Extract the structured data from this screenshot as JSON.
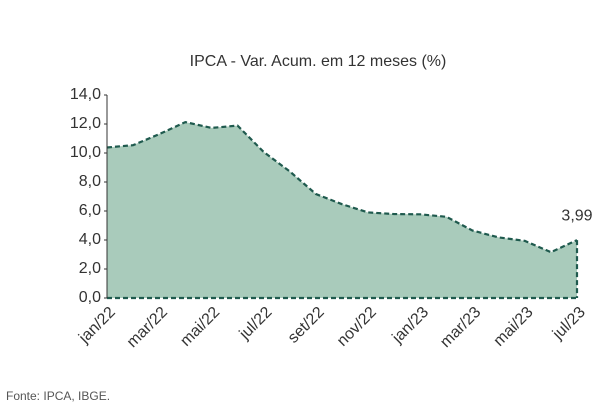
{
  "chart_data": {
    "type": "area",
    "title": "IPCA - Var. Acum. em 12 meses (%)",
    "source": "Fonte: IPCA, IBGE.",
    "categories": [
      "jan/22",
      null,
      "mar/22",
      null,
      "mai/22",
      null,
      "jul/22",
      null,
      "set/22",
      null,
      "nov/22",
      null,
      "jan/23",
      null,
      "mar/23",
      null,
      "mai/23",
      null,
      "jul/23"
    ],
    "values": [
      10.38,
      10.54,
      11.3,
      12.13,
      11.73,
      11.89,
      10.07,
      8.73,
      7.17,
      6.47,
      5.9,
      5.79,
      5.77,
      5.6,
      4.65,
      4.18,
      3.94,
      3.16,
      3.99
    ],
    "value_labels": [
      null,
      null,
      null,
      null,
      null,
      null,
      null,
      null,
      null,
      null,
      null,
      null,
      null,
      null,
      null,
      null,
      null,
      null,
      "3,99"
    ],
    "color": "#a9cbbb",
    "line_color": "#1f5a4e",
    "ylim": [
      0,
      14
    ],
    "yticks": [
      {
        "value": 0,
        "label": "0,0"
      },
      {
        "value": 2,
        "label": "2,0"
      },
      {
        "value": 4,
        "label": "4,0"
      },
      {
        "value": 6,
        "label": "6,0"
      },
      {
        "value": 8,
        "label": "8,0"
      },
      {
        "value": 10,
        "label": "10,0"
      },
      {
        "value": 12,
        "label": "12,0"
      },
      {
        "value": 14,
        "label": "14,0"
      }
    ],
    "grid": false
  }
}
